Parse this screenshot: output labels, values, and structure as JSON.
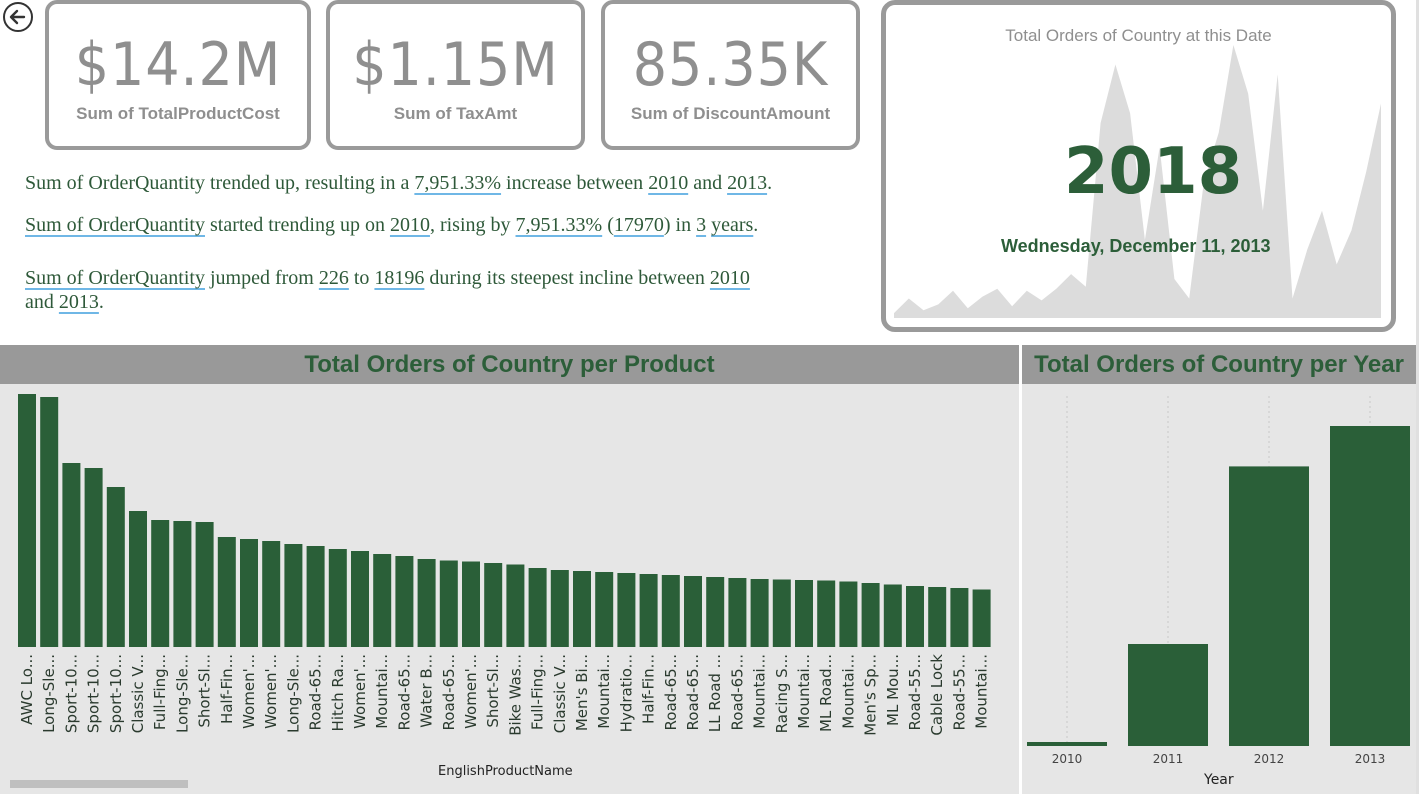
{
  "kpis": [
    {
      "value": "$14.2M",
      "label": "Sum of TotalProductCost"
    },
    {
      "value": "$1.15M",
      "label": "Sum of TaxAmt"
    },
    {
      "value": "85.35K",
      "label": "Sum of DiscountAmount"
    }
  ],
  "narrative": {
    "l1_a": "Sum of OrderQuantity trended up, resulting in a ",
    "l1_b": "7,951.33%",
    "l1_c": " increase between ",
    "l1_d": "2010",
    "l1_e": " and ",
    "l1_f": "2013",
    "l1_g": ".",
    "l2_a": "Sum of OrderQuantity",
    "l2_b": " started trending up on ",
    "l2_c": "2010",
    "l2_d": ", rising by ",
    "l2_e": "7,951.33%",
    "l2_f": " (",
    "l2_g": "17970",
    "l2_h": ") in ",
    "l2_i": "3",
    "l2_j": " ",
    "l2_k": "years",
    "l2_l": ".",
    "l3_a": "Sum of OrderQuantity",
    "l3_b": " jumped from ",
    "l3_c": "226",
    "l3_d": " to ",
    "l3_e": "18196",
    "l3_f": " during its steepest incline between ",
    "l3_g": "2010",
    "l3_h": "and ",
    "l3_i": "2013",
    "l3_j": "."
  },
  "date_card": {
    "title": "Total Orders of Country at this Date",
    "year": "2018",
    "date": "Wednesday, December 11, 2013"
  },
  "product_chart_header": "Total Orders of Country per Product",
  "year_chart_header": "Total Orders of Country per Year",
  "colors": {
    "accent": "#2a5f38",
    "panel": "#e6e6e6",
    "header": "#999999"
  },
  "chart_data": [
    {
      "type": "area",
      "title": "Total Orders of Country at this Date",
      "values": [
        5,
        20,
        8,
        14,
        28,
        10,
        22,
        30,
        12,
        28,
        18,
        30,
        45,
        32,
        200,
        260,
        210,
        80,
        175,
        40,
        20,
        140,
        190,
        280,
        230,
        110,
        250,
        20,
        70,
        110,
        55,
        90,
        150,
        220
      ]
    },
    {
      "type": "bar",
      "title": "Total Orders of Country per Product",
      "xlabel": "EnglishProductName",
      "categories": [
        "AWC Lo...",
        "Long-Sle...",
        "Sport-10...",
        "Sport-10...",
        "Sport-10...",
        "Classic V...",
        "Full-Fing...",
        "Long-Sle...",
        "Short-Sl...",
        "Half-Fin...",
        "Women'...",
        "Women'...",
        "Long-Sle...",
        "Road-65...",
        "Hitch Ra...",
        "Women'...",
        "Mountai...",
        "Road-65...",
        "Water B...",
        "Road-65...",
        "Women'...",
        "Short-Sl...",
        "Bike Was...",
        "Full-Fing...",
        "Classic V...",
        "Men's Bi...",
        "Mountai...",
        "Hydratio...",
        "Half-Fin...",
        "Road-65...",
        "Road-65...",
        "LL Road ...",
        "Road-65...",
        "Mountai...",
        "Racing S...",
        "Mountai...",
        "ML Road...",
        "Mountai...",
        "Men's Sp...",
        "ML Mou...",
        "Road-55...",
        "Cable Lock",
        "Road-55...",
        "Mountai..."
      ],
      "values": [
        2530,
        2500,
        1840,
        1790,
        1600,
        1360,
        1270,
        1260,
        1250,
        1100,
        1080,
        1060,
        1030,
        1010,
        980,
        960,
        930,
        910,
        880,
        865,
        855,
        840,
        825,
        790,
        770,
        760,
        750,
        740,
        730,
        720,
        710,
        700,
        690,
        680,
        675,
        670,
        665,
        655,
        640,
        625,
        610,
        600,
        590,
        575
      ]
    },
    {
      "type": "bar",
      "title": "Total Orders of Country per Year",
      "xlabel": "Year",
      "categories": [
        "2010",
        "2011",
        "2012",
        "2013"
      ],
      "values": [
        226,
        5800,
        15900,
        18196
      ]
    }
  ]
}
